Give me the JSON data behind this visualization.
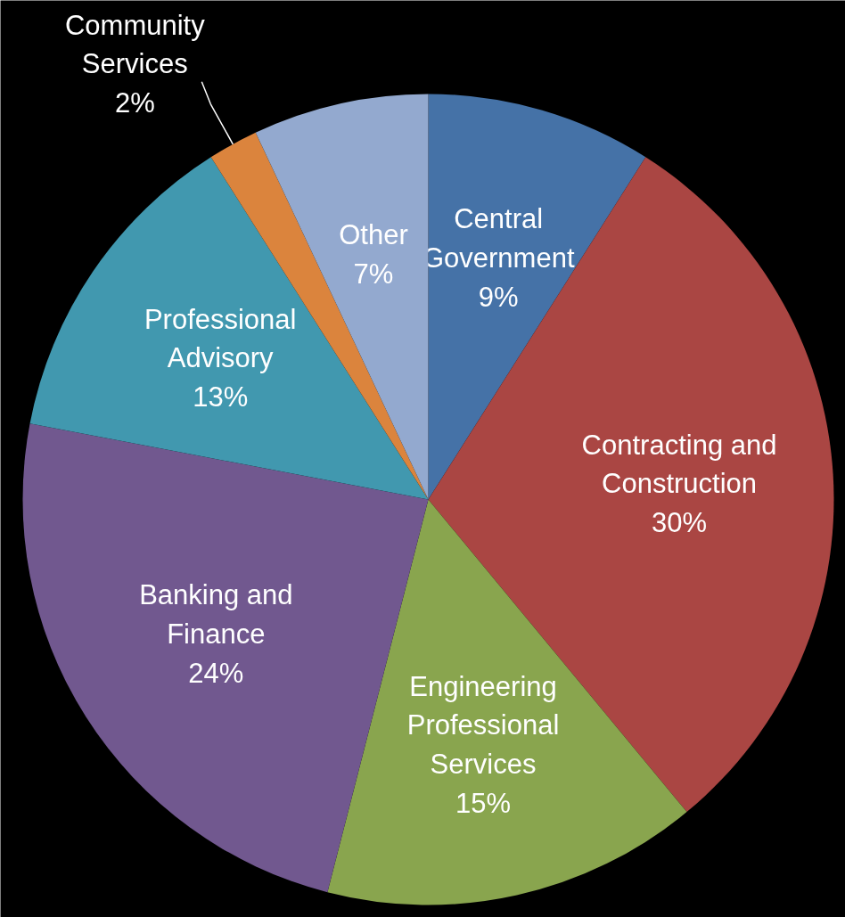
{
  "chart_data": {
    "type": "pie",
    "categories": [
      "Central Government",
      "Contracting and Construction",
      "Engineering Professional Services",
      "Banking and Finance",
      "Professional Advisory",
      "Community Services",
      "Other"
    ],
    "values": [
      9,
      30,
      15,
      24,
      13,
      2,
      7
    ],
    "colors": [
      "#4572a7",
      "#aa4643",
      "#89a54e",
      "#71588f",
      "#4198af",
      "#db843d",
      "#93a9cf"
    ],
    "value_labels": [
      "9%",
      "30%",
      "15%",
      "24%",
      "13%",
      "2%",
      "7%"
    ]
  }
}
